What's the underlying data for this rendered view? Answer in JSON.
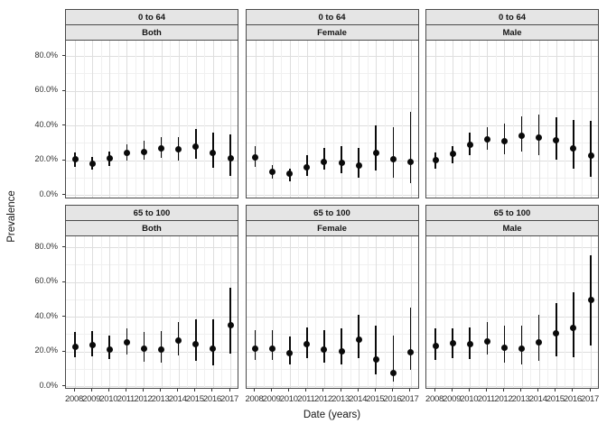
{
  "chart_data": {
    "type": "scatter",
    "subtype": "pointrange-with-confidence-intervals",
    "title": "",
    "xlabel": "Date (years)",
    "ylabel": "Prevalence",
    "x": [
      2008,
      2009,
      2010,
      2011,
      2012,
      2013,
      2014,
      2015,
      2016,
      2017
    ],
    "x_tick_labels": [
      "2008",
      "2009",
      "2010",
      "2011",
      "2012",
      "2013",
      "2014",
      "2015",
      "2016",
      "2017"
    ],
    "y_ticks_pct": [
      0,
      20,
      40,
      60,
      80
    ],
    "y_tick_labels": [
      "0.0%",
      "20.0%",
      "40.0%",
      "60.0%",
      "80.0%"
    ],
    "ylim": [
      0,
      80
    ],
    "grid": true,
    "legend": "none",
    "facet_rows": [
      "0 to 64",
      "65 to 100"
    ],
    "facet_cols": [
      "Both",
      "Female",
      "Male"
    ],
    "panels": [
      {
        "age_group": "0 to 64",
        "sex": "Both",
        "estimate_pct": [
          20.3,
          18,
          21,
          24,
          24.5,
          26.5,
          26,
          28,
          24,
          21
        ],
        "ci_low_pct": [
          16,
          14.5,
          16.5,
          19.5,
          20,
          21.5,
          19.5,
          21,
          15.5,
          11
        ],
        "ci_high_pct": [
          24.5,
          22,
          25,
          29,
          31,
          33.5,
          33,
          38,
          36,
          35
        ]
      },
      {
        "age_group": "0 to 64",
        "sex": "Female",
        "estimate_pct": [
          21.5,
          13,
          12,
          16,
          19,
          18.5,
          17,
          24,
          20.5,
          19
        ],
        "ci_low_pct": [
          16,
          9.5,
          8,
          11,
          14.5,
          12.5,
          10,
          14,
          10,
          7
        ],
        "ci_high_pct": [
          28,
          17,
          15,
          23,
          27,
          28,
          27,
          40,
          39,
          48
        ]
      },
      {
        "age_group": "0 to 64",
        "sex": "Male",
        "estimate_pct": [
          20,
          23.5,
          29,
          32,
          31,
          34,
          33,
          31.5,
          27,
          22.5
        ],
        "ci_low_pct": [
          15,
          18,
          23,
          26,
          23.5,
          25,
          23,
          20,
          15,
          10.5
        ],
        "ci_high_pct": [
          24.5,
          28,
          36,
          39,
          41,
          45,
          46,
          44.5,
          43,
          42.5
        ]
      },
      {
        "age_group": "65 to 100",
        "sex": "Both",
        "estimate_pct": [
          22.5,
          23.5,
          21,
          25,
          21.5,
          21,
          26,
          24,
          21.5,
          35
        ],
        "ci_low_pct": [
          16.5,
          17,
          15.5,
          18,
          14,
          13.5,
          17.5,
          14.5,
          12,
          18.5
        ],
        "ci_high_pct": [
          31,
          31.5,
          29,
          33.5,
          31,
          31.5,
          37,
          38.5,
          38.5,
          56.5
        ]
      },
      {
        "age_group": "65 to 100",
        "sex": "Female",
        "estimate_pct": [
          21.5,
          21.5,
          19,
          24,
          21,
          20,
          26.5,
          15.5,
          7.5,
          19.5
        ],
        "ci_low_pct": [
          15,
          15,
          12.5,
          16,
          13.5,
          12.5,
          16,
          7,
          2.5,
          9.5
        ],
        "ci_high_pct": [
          32,
          32,
          28.5,
          34,
          32,
          33,
          41,
          35,
          29,
          45
        ]
      },
      {
        "age_group": "65 to 100",
        "sex": "Male",
        "estimate_pct": [
          23,
          24.5,
          24,
          25.5,
          22,
          21.5,
          25,
          30.5,
          33.5,
          49.5
        ],
        "ci_low_pct": [
          15,
          16,
          15.5,
          18,
          13.5,
          12.5,
          14.5,
          17,
          16.5,
          23.5
        ],
        "ci_high_pct": [
          33,
          33.5,
          34,
          37,
          35,
          35,
          41,
          48,
          54,
          75.5
        ]
      }
    ],
    "colors": {
      "point": "#0a0a0a",
      "strip_fill": "#e5e5e5",
      "panel_border": "#4a4a4a",
      "grid_major": "#dedede",
      "grid_minor": "#f0f0f0",
      "axis_text": "#303030",
      "title_text": "#141414"
    }
  }
}
